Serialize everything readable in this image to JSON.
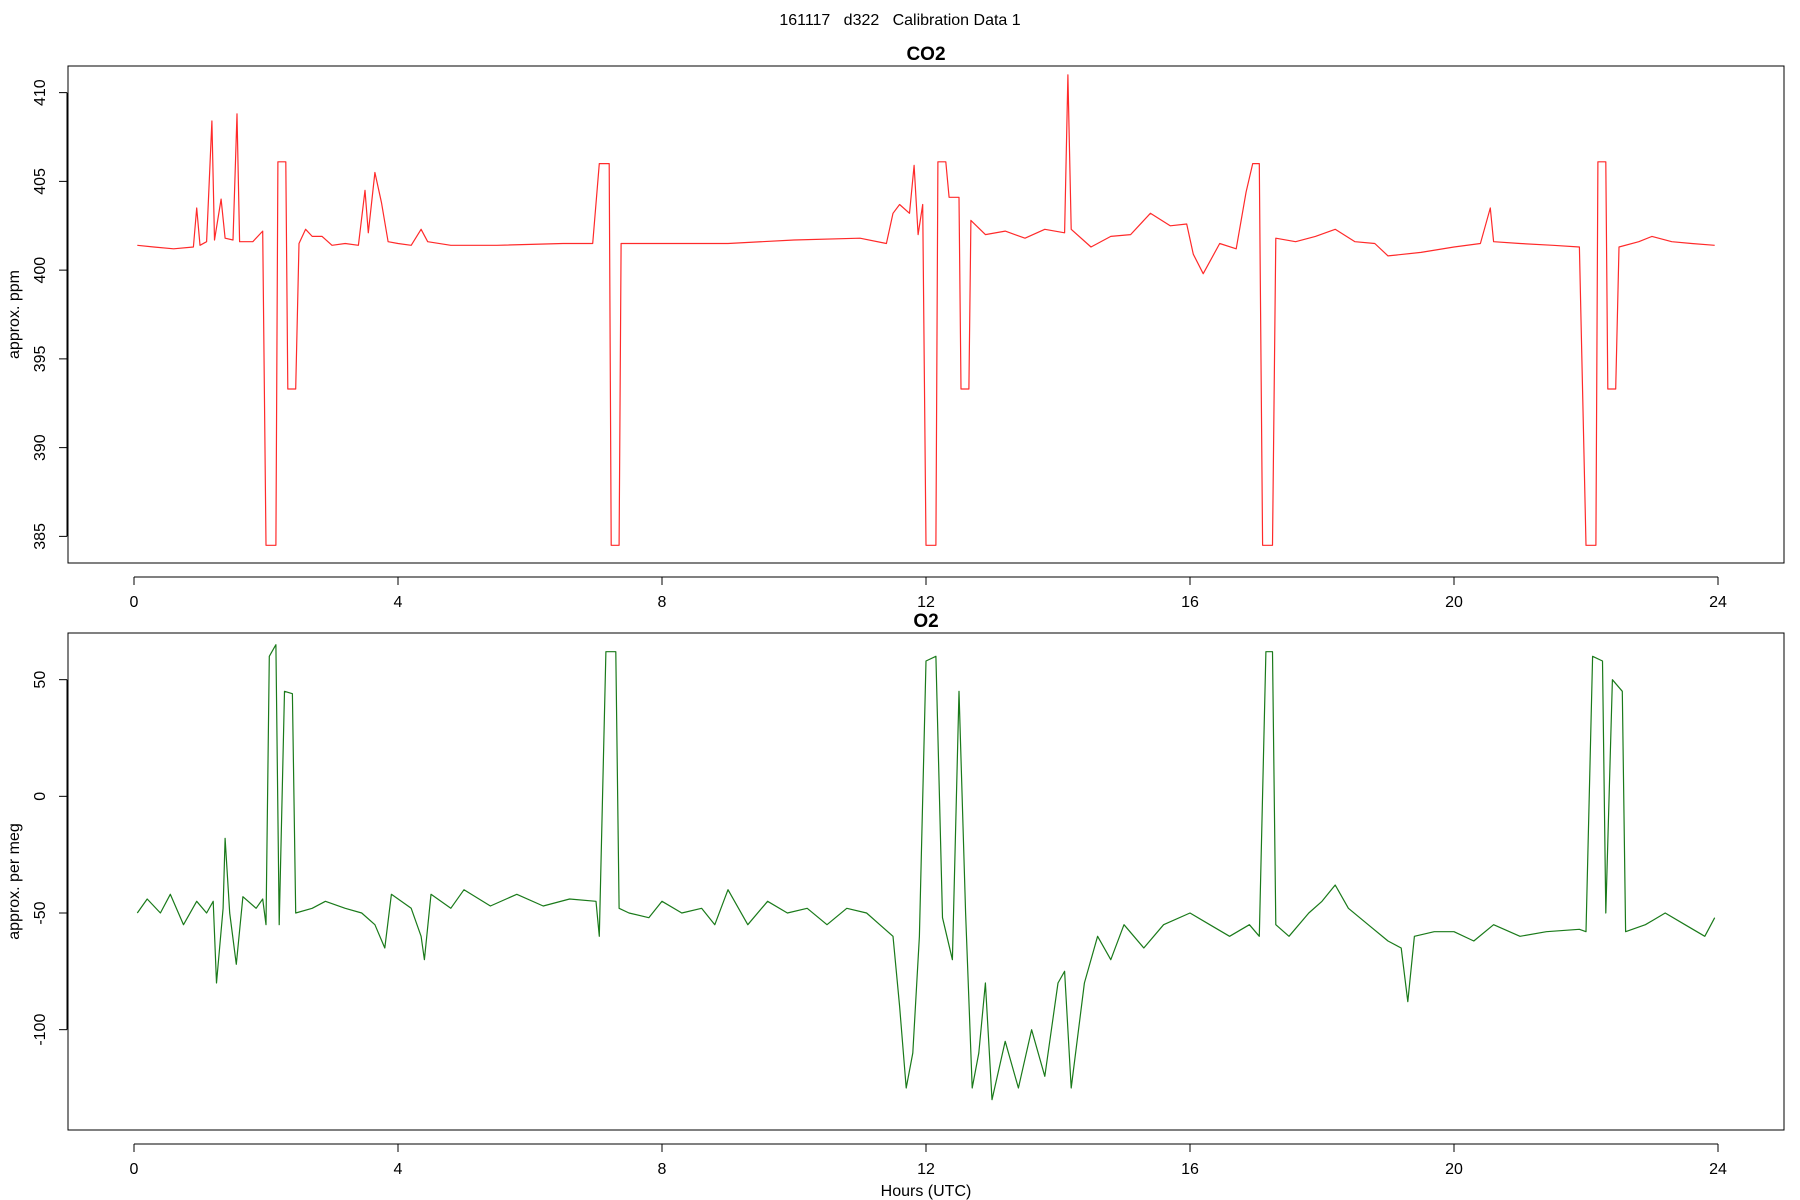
{
  "figure_title": "161117   d322   Calibration Data 1",
  "colors": {
    "co2": "#ff2a2a",
    "o2": "#1a7a1a",
    "axis": "#000000"
  },
  "chart_data": [
    {
      "type": "line",
      "title": "CO2",
      "xlabel": "",
      "ylabel": "approx. ppm",
      "xlim": [
        -1.0,
        25.0
      ],
      "ylim": [
        383.5,
        411.5
      ],
      "x_ticks": [
        0,
        4,
        8,
        12,
        16,
        20,
        24
      ],
      "y_ticks": [
        385,
        390,
        395,
        400,
        405,
        410
      ],
      "grid": false,
      "series": [
        {
          "color": "#ff2a2a",
          "points": [
            [
              0.05,
              401.4
            ],
            [
              0.3,
              401.3
            ],
            [
              0.6,
              401.2
            ],
            [
              0.9,
              401.3
            ],
            [
              0.95,
              403.5
            ],
            [
              1.0,
              401.4
            ],
            [
              1.1,
              401.6
            ],
            [
              1.18,
              408.4
            ],
            [
              1.22,
              401.7
            ],
            [
              1.32,
              404.0
            ],
            [
              1.38,
              401.8
            ],
            [
              1.5,
              401.7
            ],
            [
              1.56,
              408.8
            ],
            [
              1.6,
              401.6
            ],
            [
              1.8,
              401.6
            ],
            [
              1.95,
              402.2
            ],
            [
              2.0,
              384.5
            ],
            [
              2.15,
              384.5
            ],
            [
              2.18,
              406.1
            ],
            [
              2.3,
              406.1
            ],
            [
              2.33,
              393.3
            ],
            [
              2.45,
              393.3
            ],
            [
              2.5,
              401.5
            ],
            [
              2.6,
              402.3
            ],
            [
              2.7,
              401.9
            ],
            [
              2.85,
              401.9
            ],
            [
              3.0,
              401.4
            ],
            [
              3.2,
              401.5
            ],
            [
              3.4,
              401.4
            ],
            [
              3.5,
              404.5
            ],
            [
              3.55,
              402.1
            ],
            [
              3.65,
              405.5
            ],
            [
              3.75,
              403.8
            ],
            [
              3.85,
              401.6
            ],
            [
              4.0,
              401.5
            ],
            [
              4.2,
              401.4
            ],
            [
              4.35,
              402.3
            ],
            [
              4.45,
              401.6
            ],
            [
              4.8,
              401.4
            ],
            [
              5.5,
              401.4
            ],
            [
              6.5,
              401.5
            ],
            [
              6.95,
              401.5
            ],
            [
              7.05,
              406.0
            ],
            [
              7.2,
              406.0
            ],
            [
              7.23,
              384.5
            ],
            [
              7.35,
              384.5
            ],
            [
              7.38,
              401.5
            ],
            [
              8.0,
              401.5
            ],
            [
              9.0,
              401.5
            ],
            [
              10.0,
              401.7
            ],
            [
              11.0,
              401.8
            ],
            [
              11.4,
              401.5
            ],
            [
              11.5,
              403.2
            ],
            [
              11.6,
              403.7
            ],
            [
              11.75,
              403.2
            ],
            [
              11.82,
              405.9
            ],
            [
              11.88,
              402.0
            ],
            [
              11.95,
              403.7
            ],
            [
              12.0,
              384.5
            ],
            [
              12.15,
              384.5
            ],
            [
              12.18,
              406.1
            ],
            [
              12.3,
              406.1
            ],
            [
              12.35,
              404.1
            ],
            [
              12.5,
              404.1
            ],
            [
              12.53,
              393.3
            ],
            [
              12.65,
              393.3
            ],
            [
              12.68,
              402.8
            ],
            [
              12.9,
              402.0
            ],
            [
              13.2,
              402.2
            ],
            [
              13.5,
              401.8
            ],
            [
              13.8,
              402.3
            ],
            [
              14.1,
              402.1
            ],
            [
              14.15,
              411.0
            ],
            [
              14.2,
              402.3
            ],
            [
              14.5,
              401.3
            ],
            [
              14.8,
              401.9
            ],
            [
              15.1,
              402.0
            ],
            [
              15.4,
              403.2
            ],
            [
              15.7,
              402.5
            ],
            [
              15.95,
              402.6
            ],
            [
              16.05,
              400.9
            ],
            [
              16.2,
              399.8
            ],
            [
              16.45,
              401.5
            ],
            [
              16.7,
              401.2
            ],
            [
              16.85,
              404.4
            ],
            [
              16.95,
              406.0
            ],
            [
              17.05,
              406.0
            ],
            [
              17.1,
              384.5
            ],
            [
              17.25,
              384.5
            ],
            [
              17.3,
              401.8
            ],
            [
              17.6,
              401.6
            ],
            [
              17.9,
              401.9
            ],
            [
              18.2,
              402.3
            ],
            [
              18.5,
              401.6
            ],
            [
              18.8,
              401.5
            ],
            [
              19.0,
              400.8
            ],
            [
              19.5,
              401.0
            ],
            [
              20.0,
              401.3
            ],
            [
              20.4,
              401.5
            ],
            [
              20.55,
              403.5
            ],
            [
              20.6,
              401.6
            ],
            [
              21.0,
              401.5
            ],
            [
              21.5,
              401.4
            ],
            [
              21.9,
              401.3
            ],
            [
              22.0,
              384.5
            ],
            [
              22.15,
              384.5
            ],
            [
              22.18,
              406.1
            ],
            [
              22.3,
              406.1
            ],
            [
              22.33,
              393.3
            ],
            [
              22.45,
              393.3
            ],
            [
              22.5,
              401.3
            ],
            [
              22.8,
              401.6
            ],
            [
              23.0,
              401.9
            ],
            [
              23.3,
              401.6
            ],
            [
              23.6,
              401.5
            ],
            [
              23.95,
              401.4
            ]
          ]
        }
      ]
    },
    {
      "type": "line",
      "title": "O2",
      "xlabel": "Hours (UTC)",
      "ylabel": "approx. per meg",
      "xlim": [
        -1.0,
        25.0
      ],
      "ylim": [
        -143,
        70
      ],
      "x_ticks": [
        0,
        4,
        8,
        12,
        16,
        20,
        24
      ],
      "y_ticks": [
        -100,
        -50,
        0,
        50
      ],
      "grid": false,
      "series": [
        {
          "color": "#1a7a1a",
          "points": [
            [
              0.05,
              -50
            ],
            [
              0.2,
              -44
            ],
            [
              0.4,
              -50
            ],
            [
              0.55,
              -42
            ],
            [
              0.75,
              -55
            ],
            [
              0.95,
              -45
            ],
            [
              1.1,
              -50
            ],
            [
              1.2,
              -45
            ],
            [
              1.25,
              -80
            ],
            [
              1.35,
              -48
            ],
            [
              1.38,
              -18
            ],
            [
              1.45,
              -50
            ],
            [
              1.55,
              -72
            ],
            [
              1.65,
              -43
            ],
            [
              1.85,
              -48
            ],
            [
              1.95,
              -44
            ],
            [
              2.0,
              -55
            ],
            [
              2.05,
              60
            ],
            [
              2.15,
              65
            ],
            [
              2.2,
              -55
            ],
            [
              2.28,
              45
            ],
            [
              2.4,
              44
            ],
            [
              2.45,
              -50
            ],
            [
              2.7,
              -48
            ],
            [
              2.9,
              -45
            ],
            [
              3.2,
              -48
            ],
            [
              3.45,
              -50
            ],
            [
              3.65,
              -55
            ],
            [
              3.8,
              -65
            ],
            [
              3.9,
              -42
            ],
            [
              4.2,
              -48
            ],
            [
              4.35,
              -60
            ],
            [
              4.4,
              -70
            ],
            [
              4.5,
              -42
            ],
            [
              4.8,
              -48
            ],
            [
              5.0,
              -40
            ],
            [
              5.4,
              -47
            ],
            [
              5.8,
              -42
            ],
            [
              6.2,
              -47
            ],
            [
              6.6,
              -44
            ],
            [
              7.0,
              -45
            ],
            [
              7.05,
              -60
            ],
            [
              7.15,
              62
            ],
            [
              7.3,
              62
            ],
            [
              7.35,
              -48
            ],
            [
              7.5,
              -50
            ],
            [
              7.8,
              -52
            ],
            [
              8.0,
              -45
            ],
            [
              8.3,
              -50
            ],
            [
              8.6,
              -48
            ],
            [
              8.8,
              -55
            ],
            [
              9.0,
              -40
            ],
            [
              9.3,
              -55
            ],
            [
              9.6,
              -45
            ],
            [
              9.9,
              -50
            ],
            [
              10.2,
              -48
            ],
            [
              10.5,
              -55
            ],
            [
              10.8,
              -48
            ],
            [
              11.1,
              -50
            ],
            [
              11.3,
              -55
            ],
            [
              11.5,
              -60
            ],
            [
              11.6,
              -90
            ],
            [
              11.7,
              -125
            ],
            [
              11.8,
              -110
            ],
            [
              11.9,
              -60
            ],
            [
              12.0,
              58
            ],
            [
              12.15,
              60
            ],
            [
              12.25,
              -52
            ],
            [
              12.4,
              -70
            ],
            [
              12.5,
              45
            ],
            [
              12.6,
              -50
            ],
            [
              12.7,
              -125
            ],
            [
              12.8,
              -110
            ],
            [
              12.9,
              -80
            ],
            [
              13.0,
              -130
            ],
            [
              13.2,
              -105
            ],
            [
              13.4,
              -125
            ],
            [
              13.6,
              -100
            ],
            [
              13.8,
              -120
            ],
            [
              14.0,
              -80
            ],
            [
              14.1,
              -75
            ],
            [
              14.2,
              -125
            ],
            [
              14.4,
              -80
            ],
            [
              14.6,
              -60
            ],
            [
              14.8,
              -70
            ],
            [
              15.0,
              -55
            ],
            [
              15.3,
              -65
            ],
            [
              15.6,
              -55
            ],
            [
              16.0,
              -50
            ],
            [
              16.3,
              -55
            ],
            [
              16.6,
              -60
            ],
            [
              16.9,
              -55
            ],
            [
              17.05,
              -60
            ],
            [
              17.15,
              62
            ],
            [
              17.25,
              62
            ],
            [
              17.3,
              -55
            ],
            [
              17.5,
              -60
            ],
            [
              17.8,
              -50
            ],
            [
              18.0,
              -45
            ],
            [
              18.2,
              -38
            ],
            [
              18.4,
              -48
            ],
            [
              18.7,
              -55
            ],
            [
              19.0,
              -62
            ],
            [
              19.2,
              -65
            ],
            [
              19.3,
              -88
            ],
            [
              19.4,
              -60
            ],
            [
              19.7,
              -58
            ],
            [
              20.0,
              -58
            ],
            [
              20.3,
              -62
            ],
            [
              20.6,
              -55
            ],
            [
              21.0,
              -60
            ],
            [
              21.4,
              -58
            ],
            [
              21.9,
              -57
            ],
            [
              22.0,
              -58
            ],
            [
              22.1,
              60
            ],
            [
              22.25,
              58
            ],
            [
              22.3,
              -50
            ],
            [
              22.4,
              50
            ],
            [
              22.55,
              45
            ],
            [
              22.6,
              -58
            ],
            [
              22.9,
              -55
            ],
            [
              23.2,
              -50
            ],
            [
              23.5,
              -55
            ],
            [
              23.8,
              -60
            ],
            [
              23.95,
              -52
            ]
          ]
        }
      ]
    }
  ]
}
